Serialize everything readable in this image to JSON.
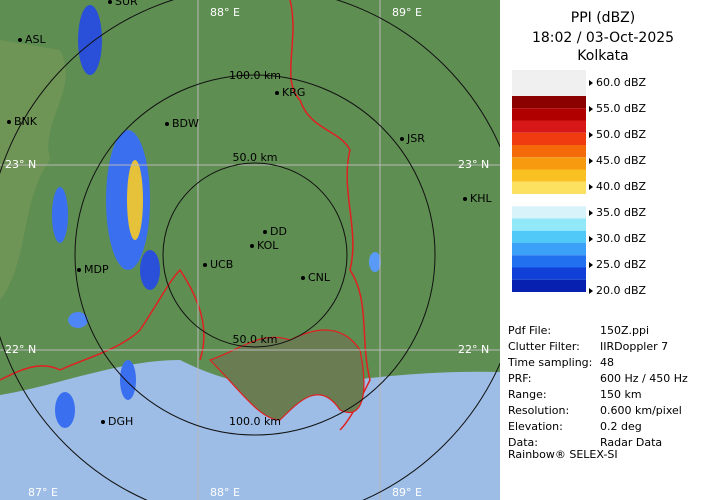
{
  "map": {
    "top_lon_labels": [
      "88° E",
      "89° E"
    ],
    "bottom_lon_labels": [
      "87° E",
      "88° E",
      "89° E"
    ],
    "left_lat_labels": [
      "23° N",
      "22° N"
    ],
    "right_lat_labels": [
      "23° N",
      "22° N"
    ],
    "range_labels": [
      "100.0 km",
      "50.0 km",
      "50.0 km",
      "100.0 km"
    ],
    "places": [
      "SUR",
      "ASL",
      "KRG",
      "BNK",
      "BDW",
      "JSR",
      "KHL",
      "DD",
      "KOL",
      "UCB",
      "MDP",
      "CNL",
      "DGH"
    ]
  },
  "panel": {
    "title": "PPI (dBZ)",
    "timestamp": "18:02 / 03-Oct-2025",
    "station": "Kolkata",
    "legend": [
      "60.0 dBZ",
      "55.0 dBZ",
      "50.0 dBZ",
      "45.0 dBZ",
      "40.0 dBZ",
      "35.0 dBZ",
      "30.0 dBZ",
      "25.0 dBZ",
      "20.0 dBZ"
    ],
    "info": [
      [
        "Pdf File:",
        "150Z.ppi"
      ],
      [
        "Clutter Filter:",
        "IIRDoppler 7"
      ],
      [
        "Time sampling:",
        "48"
      ],
      [
        "PRF:",
        "600 Hz / 450 Hz"
      ],
      [
        "Range:",
        "150 km"
      ],
      [
        "Resolution:",
        "0.600 km/pixel"
      ],
      [
        "Elevation:",
        "0.2 deg"
      ],
      [
        "Data:",
        "Radar Data"
      ]
    ],
    "footer": "Rainbow® SELEX-SI"
  }
}
